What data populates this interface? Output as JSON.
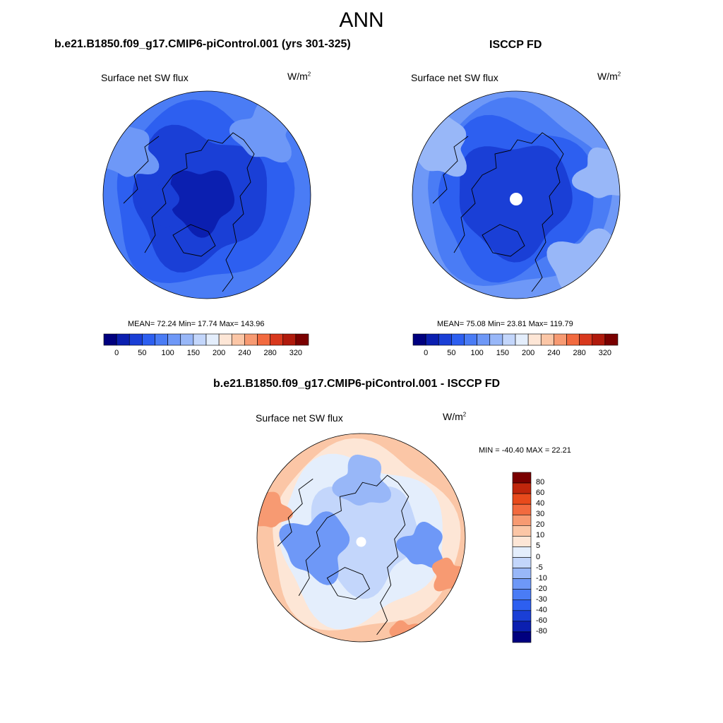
{
  "page": {
    "title": "ANN"
  },
  "levels_main": [
    0,
    25,
    50,
    75,
    100,
    125,
    150,
    175,
    200,
    220,
    240,
    260,
    280,
    300,
    320
  ],
  "levels_main_tick_labels": [
    "0",
    "50",
    "100",
    "150",
    "200",
    "240",
    "280",
    "320"
  ],
  "levels_main_tick_index": [
    0,
    2,
    4,
    6,
    8,
    10,
    12,
    14
  ],
  "colors_main": [
    "#00007f",
    "#0b1fb0",
    "#1a3fd6",
    "#2d5ff0",
    "#4a7cf5",
    "#6e98f7",
    "#98b7f8",
    "#c3d6fb",
    "#e4eefc",
    "#fde6d6",
    "#fbc6a6",
    "#f79a72",
    "#f26a3f",
    "#d8381d",
    "#b01a0c",
    "#7a0000"
  ],
  "levels_diff": [
    "-80",
    "-60",
    "-40",
    "-30",
    "-20",
    "-10",
    "-5",
    "0",
    "5",
    "10",
    "20",
    "30",
    "40",
    "60",
    "80"
  ],
  "colors_diff": [
    "#00007f",
    "#0b1fb0",
    "#1a3fd6",
    "#2d5ff0",
    "#4a7cf5",
    "#6e98f7",
    "#98b7f8",
    "#c3d6fb",
    "#e4eefc",
    "#fde6d6",
    "#fbc6a6",
    "#f79a72",
    "#f26a3f",
    "#e84a1c",
    "#c0260c",
    "#7a0000"
  ],
  "panels": {
    "model": {
      "title": "b.e21.B1850.f09_g17.CMIP6-piControl.001 (yrs 301-325)",
      "var_label": "Surface net SW flux",
      "units_base": "W/m",
      "units_sup": "2",
      "stats": "MEAN=  72.24  Min=  17.74  Max= 143.96"
    },
    "obs": {
      "title": "ISCCP FD",
      "var_label": "Surface net SW flux",
      "units_base": "W/m",
      "units_sup": "2",
      "stats": "MEAN=  75.08  Min=  23.81  Max= 119.79"
    },
    "diff": {
      "title": "b.e21.B1850.f09_g17.CMIP6-piControl.001 - ISCCP FD",
      "var_label": "Surface net SW flux",
      "units_base": "W/m",
      "units_sup": "2",
      "stats": "MIN = -40.40 MAX =  22.21"
    }
  },
  "chart_data": [
    {
      "type": "heatmap",
      "projection": "north polar stereographic",
      "title": "b.e21.B1850.f09_g17.CMIP6-piControl.001 (yrs 301-325)",
      "variable": "Surface net SW flux",
      "units": "W/m2",
      "mean": 72.24,
      "min": 17.74,
      "max": 143.96,
      "colorbar_ticks": [
        0,
        50,
        100,
        150,
        200,
        240,
        280,
        320
      ]
    },
    {
      "type": "heatmap",
      "projection": "north polar stereographic",
      "title": "ISCCP FD",
      "variable": "Surface net SW flux",
      "units": "W/m2",
      "mean": 75.08,
      "min": 23.81,
      "max": 119.79,
      "colorbar_ticks": [
        0,
        50,
        100,
        150,
        200,
        240,
        280,
        320
      ]
    },
    {
      "type": "heatmap",
      "projection": "north polar stereographic",
      "title": "b.e21.B1850.f09_g17.CMIP6-piControl.001 - ISCCP FD",
      "variable": "Surface net SW flux",
      "units": "W/m2",
      "min": -40.4,
      "max": 22.21,
      "colorbar_ticks": [
        -80,
        -60,
        -40,
        -30,
        -20,
        -10,
        -5,
        0,
        5,
        10,
        20,
        30,
        40,
        60,
        80
      ]
    }
  ]
}
